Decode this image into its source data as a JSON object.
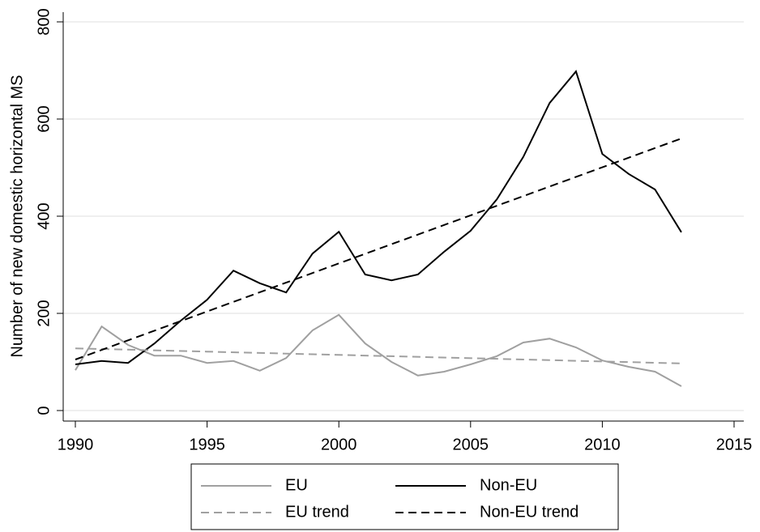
{
  "chart_data": {
    "type": "line",
    "ylabel": "Number of new domestic horizontal MS",
    "xlim": [
      1990,
      2015
    ],
    "xticks": [
      1990,
      1995,
      2000,
      2005,
      2010,
      2015
    ],
    "ylim": [
      0,
      800
    ],
    "yticks": [
      0,
      200,
      400,
      600,
      800
    ],
    "grid": true,
    "series": [
      {
        "name": "EU",
        "color": "#a0a0a0",
        "dash": false,
        "x": [
          1990,
          1991,
          1992,
          1993,
          1994,
          1995,
          1996,
          1997,
          1998,
          1999,
          2000,
          2001,
          2002,
          2003,
          2004,
          2005,
          2006,
          2007,
          2008,
          2009,
          2010,
          2011,
          2012,
          2013
        ],
        "values": [
          83,
          173,
          135,
          113,
          113,
          98,
          102,
          82,
          108,
          165,
          197,
          138,
          100,
          72,
          80,
          95,
          112,
          140,
          148,
          130,
          103,
          90,
          80,
          50
        ]
      },
      {
        "name": "Non-EU",
        "color": "#000000",
        "dash": false,
        "x": [
          1990,
          1991,
          1992,
          1993,
          1994,
          1995,
          1996,
          1997,
          1998,
          1999,
          2000,
          2001,
          2002,
          2003,
          2004,
          2005,
          2006,
          2007,
          2008,
          2009,
          2010,
          2011,
          2012,
          2013
        ],
        "values": [
          95,
          102,
          98,
          138,
          185,
          228,
          288,
          262,
          243,
          323,
          368,
          280,
          268,
          280,
          327,
          370,
          435,
          522,
          633,
          698,
          528,
          487,
          455,
          367
        ]
      },
      {
        "name": "EU trend",
        "color": "#a0a0a0",
        "dash": true,
        "x": [
          1990,
          2013
        ],
        "values": [
          128,
          97
        ]
      },
      {
        "name": "Non-EU trend",
        "color": "#000000",
        "dash": true,
        "x": [
          1990,
          2013
        ],
        "values": [
          105,
          560
        ]
      }
    ]
  }
}
